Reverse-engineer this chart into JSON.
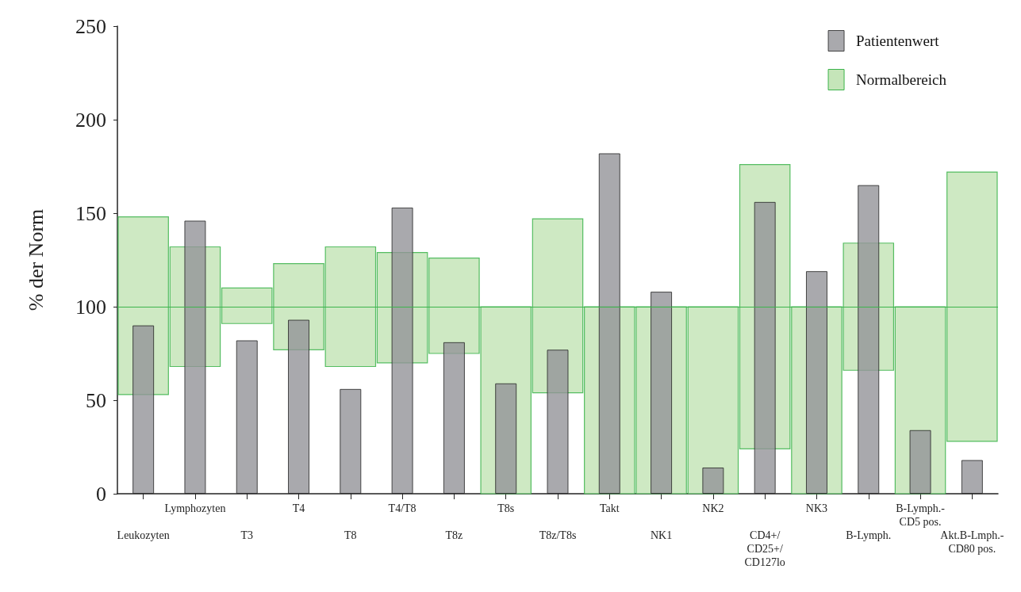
{
  "chart_data": {
    "type": "bar",
    "ylabel": "% der Norm",
    "categories": [
      "Leukozyten",
      "Lymphozyten",
      "T3",
      "T4",
      "T8",
      "T4/T8",
      "T8z",
      "T8s",
      "T8z/T8s",
      "Takt",
      "NK1",
      "NK2",
      "CD4+/\nCD25+/\nCD127lo",
      "NK3",
      "B-Lymph.",
      "B-Lymph.-\nCD5 pos.",
      "Akt.B-Lmph.-\nCD80 pos."
    ],
    "series": [
      {
        "name": "Patientenwert",
        "color": "#939398",
        "values": [
          90,
          146,
          82,
          93,
          56,
          153,
          81,
          59,
          77,
          182,
          108,
          14,
          156,
          119,
          165,
          34,
          18
        ]
      },
      {
        "name": "Normalbereich",
        "color": "#c5e5b9",
        "base": [
          53,
          68,
          91,
          77,
          68,
          70,
          75,
          0,
          54,
          0,
          0,
          0,
          24,
          0,
          66,
          0,
          28
        ],
        "values": [
          95,
          64,
          19,
          46,
          64,
          59,
          51,
          100,
          93,
          100,
          100,
          100,
          152,
          100,
          68,
          100,
          144
        ]
      }
    ],
    "ylim": [
      0,
      250
    ],
    "yticks": [
      0,
      50,
      100,
      150,
      200,
      250
    ],
    "ref_lines": [
      {
        "axis": "y",
        "value": 100,
        "color": "#3cb44b"
      }
    ],
    "legend": "top right",
    "grid": false
  }
}
